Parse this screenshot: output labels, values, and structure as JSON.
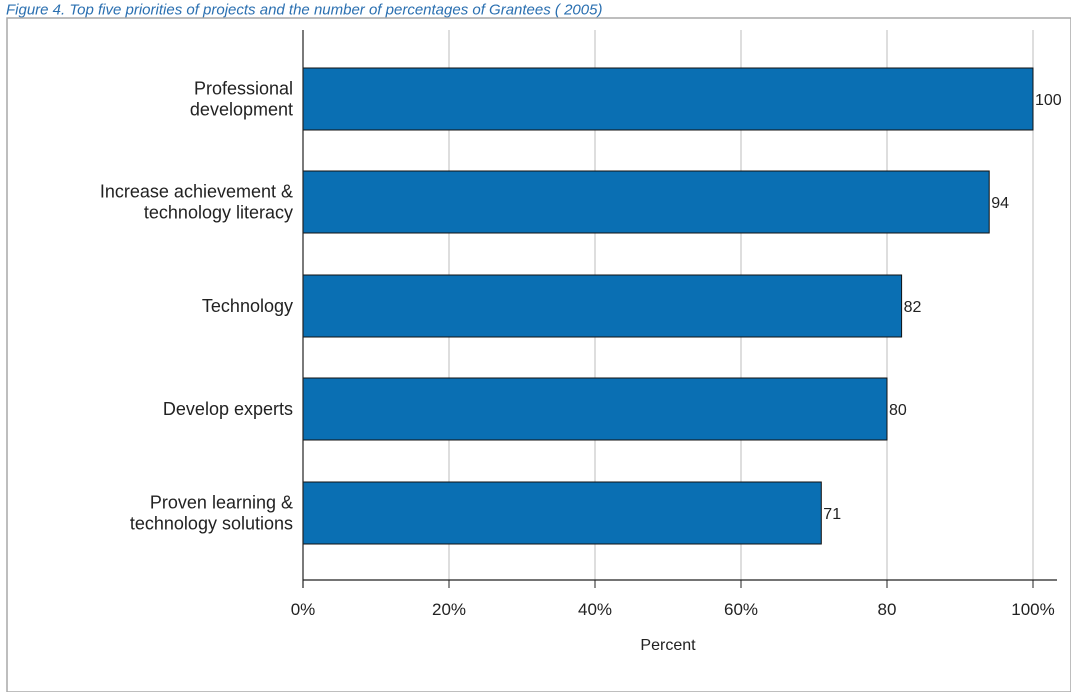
{
  "caption": "Figure 4. Top five priorities of projects and the number of percentages of Grantees ( 2005)",
  "chart_data": {
    "type": "bar",
    "orientation": "horizontal",
    "categories": [
      [
        "Professional",
        "development"
      ],
      [
        "Increase achievement &",
        "technology literacy"
      ],
      [
        "Technology"
      ],
      [
        "Develop experts"
      ],
      [
        "Proven learning &",
        "technology solutions"
      ]
    ],
    "values": [
      100,
      94,
      82,
      80,
      71
    ],
    "xlabel": "Percent",
    "xticks": [
      "0%",
      "20%",
      "40%",
      "60%",
      "80",
      "100%"
    ],
    "xlim": [
      0,
      100
    ],
    "grid": true,
    "bar_color": "#0a6fb3"
  }
}
